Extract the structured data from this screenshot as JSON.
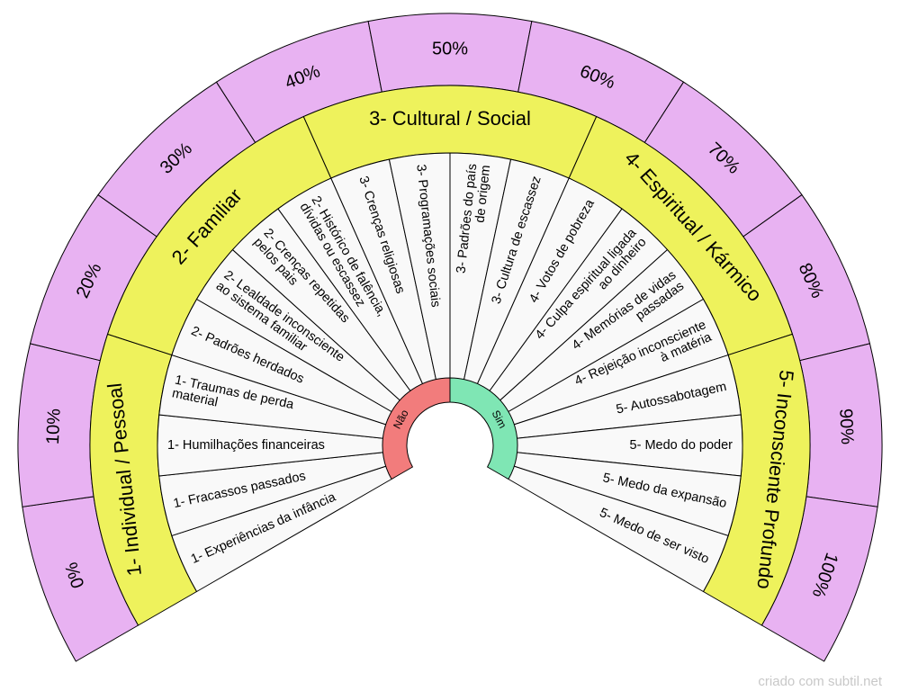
{
  "percent_ring": [
    "0%",
    "10%",
    "20%",
    "30%",
    "40%",
    "50%",
    "60%",
    "70%",
    "80%",
    "90%",
    "100%"
  ],
  "categories": [
    "1- Individual / Pessoal",
    "2- Familiar",
    "3- Cultural / Social",
    "4- Espiritual / Kármico",
    "5- Inconsciente Profundo"
  ],
  "segments": [
    [
      "1- Experiências da infância"
    ],
    [
      "1- Fracassos passados"
    ],
    [
      "1- Humilhações financeiras"
    ],
    [
      "1- Traumas de perda",
      "material"
    ],
    [
      "2- Padrões herdados"
    ],
    [
      "2- Lealdade inconsciente",
      "ao sistema familiar"
    ],
    [
      "2- Crenças repetidas",
      "pelos pais"
    ],
    [
      "2- Histórico de falência,",
      "dívidas ou escassez"
    ],
    [
      "3- Crenças religiosas"
    ],
    [
      "3- Programações sociais"
    ],
    [
      "3- Padrões do país",
      "de origem"
    ],
    [
      "3- Cultura de escassez"
    ],
    [
      "4- Votos de pobreza"
    ],
    [
      "4- Culpa espiritual ligada",
      "ao dinheiro"
    ],
    [
      "4- Memórias de vidas",
      "passadas"
    ],
    [
      "4- Rejeição inconsciente",
      "à matéria"
    ],
    [
      "5- Autossabotagem"
    ],
    [
      "5- Medo do poder"
    ],
    [
      "5- Medo da expansão"
    ],
    [
      "5- Medo de ser visto"
    ]
  ],
  "center": {
    "left": "Não",
    "right": "Sim"
  },
  "footer": "criado com subtil.net"
}
